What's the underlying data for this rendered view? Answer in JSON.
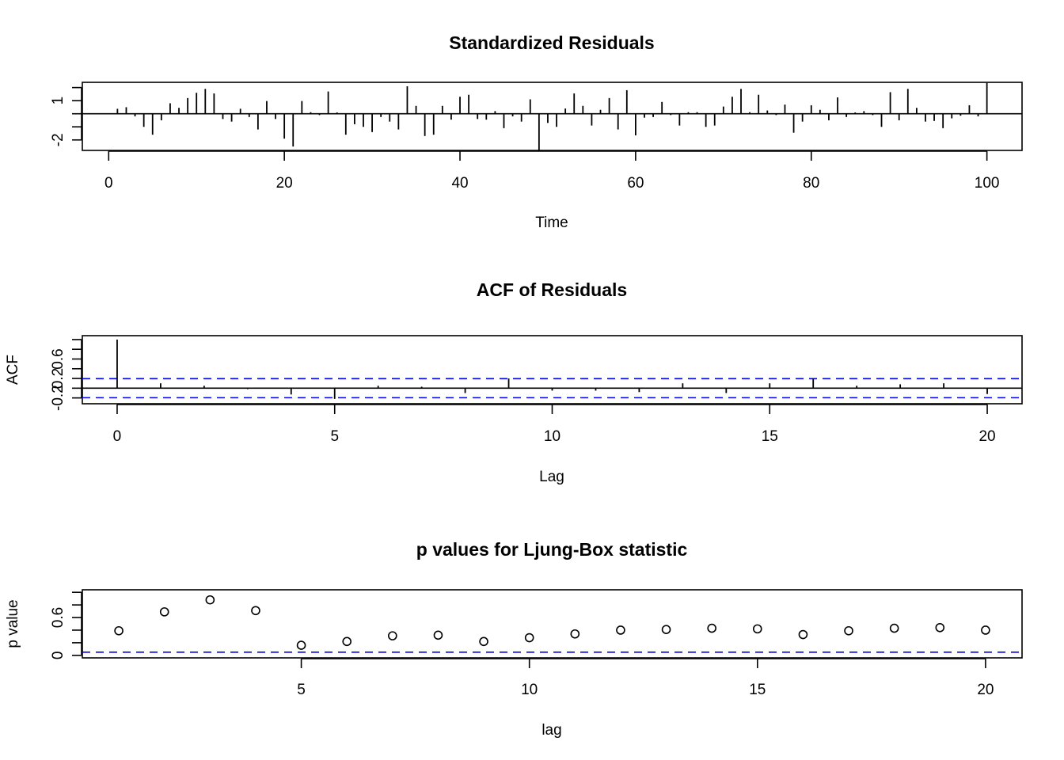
{
  "chart_data": [
    {
      "type": "line",
      "style": "histogram-spikes",
      "title": "Standardized Residuals",
      "xlabel": "Time",
      "ylabel": "",
      "xlim": [
        -3,
        104
      ],
      "ylim": [
        -2.8,
        2.4
      ],
      "x_ticks": [
        0,
        20,
        40,
        60,
        80,
        100
      ],
      "y_ticks": [
        1,
        -2
      ],
      "y_tick_marks": [
        2,
        1,
        0,
        -1,
        -2
      ],
      "x": [
        1,
        2,
        3,
        4,
        5,
        6,
        7,
        8,
        9,
        10,
        11,
        12,
        13,
        14,
        15,
        16,
        17,
        18,
        19,
        20,
        21,
        22,
        23,
        24,
        25,
        26,
        27,
        28,
        29,
        30,
        31,
        32,
        33,
        34,
        35,
        36,
        37,
        38,
        39,
        40,
        41,
        42,
        43,
        44,
        45,
        46,
        47,
        48,
        49,
        50,
        51,
        52,
        53,
        54,
        55,
        56,
        57,
        58,
        59,
        60,
        61,
        62,
        63,
        64,
        65,
        66,
        67,
        68,
        69,
        70,
        71,
        72,
        73,
        74,
        75,
        76,
        77,
        78,
        79,
        80,
        81,
        82,
        83,
        84,
        85,
        86,
        87,
        88,
        89,
        90,
        91,
        92,
        93,
        94,
        95,
        96,
        97,
        98,
        99,
        100
      ],
      "values": [
        0.38,
        0.5,
        -0.2,
        -1.0,
        -1.6,
        -0.5,
        0.8,
        0.45,
        1.2,
        1.6,
        1.9,
        1.55,
        -0.4,
        -0.6,
        0.38,
        -0.25,
        -1.2,
        0.97,
        -0.4,
        -1.9,
        -2.5,
        0.97,
        0.12,
        -0.1,
        1.7,
        0.1,
        -1.6,
        -0.8,
        -1.0,
        -1.4,
        -0.25,
        -0.6,
        -1.2,
        2.1,
        0.6,
        -1.7,
        -1.6,
        0.6,
        -0.45,
        1.3,
        1.45,
        -0.4,
        -0.45,
        0.2,
        -1.1,
        -0.2,
        -0.6,
        1.1,
        -2.8,
        -0.7,
        -1.0,
        0.4,
        1.55,
        0.6,
        -0.9,
        0.3,
        1.2,
        -1.2,
        1.8,
        -1.65,
        -0.3,
        -0.25,
        0.9,
        -0.1,
        -0.9,
        0.12,
        0.12,
        -1.0,
        -0.9,
        0.55,
        1.3,
        1.9,
        0.12,
        1.45,
        0.25,
        -0.1,
        0.7,
        -1.45,
        -0.6,
        0.65,
        0.3,
        -0.5,
        1.25,
        -0.25,
        0.1,
        0.2,
        -0.1,
        -1.0,
        1.65,
        -0.5,
        1.9,
        0.45,
        -0.6,
        -0.55,
        -1.1,
        -0.35,
        -0.15,
        0.65,
        -0.2,
        2.35
      ]
    },
    {
      "type": "bar",
      "style": "histogram-spikes",
      "title": "ACF of Residuals",
      "xlabel": "Lag",
      "ylabel": "ACF",
      "xlim": [
        -0.8,
        20.8
      ],
      "ylim": [
        -0.32,
        1.08
      ],
      "x_ticks": [
        0,
        5,
        10,
        15,
        20
      ],
      "y_ticks": [
        -0.2,
        0.2,
        0.6
      ],
      "y_tick_marks": [
        -0.2,
        0.0,
        0.2,
        0.4,
        0.6,
        0.8,
        1.0
      ],
      "x": [
        0,
        1,
        2,
        3,
        4,
        5,
        6,
        7,
        8,
        9,
        10,
        11,
        12,
        13,
        14,
        15,
        16,
        17,
        18,
        19,
        20
      ],
      "values": [
        1.0,
        0.1,
        0.05,
        -0.02,
        -0.13,
        -0.22,
        0.05,
        0.03,
        -0.1,
        0.2,
        -0.05,
        -0.05,
        -0.08,
        0.1,
        -0.1,
        0.1,
        0.2,
        0.05,
        0.08,
        0.1,
        -0.12
      ],
      "confidence_band": 0.196,
      "confidence_band_color": "#0000ff"
    },
    {
      "type": "scatter",
      "title": "p values for Ljung-Box statistic",
      "xlabel": "lag",
      "ylabel": "p value",
      "xlim": [
        0.2,
        20.8
      ],
      "ylim": [
        -0.04,
        1.04
      ],
      "x_ticks": [
        5,
        10,
        15,
        20
      ],
      "y_ticks": [
        0.0,
        0.6
      ],
      "y_tick_marks": [
        0.0,
        0.2,
        0.4,
        0.6,
        0.8,
        1.0
      ],
      "x": [
        1,
        2,
        3,
        4,
        5,
        6,
        7,
        8,
        9,
        10,
        11,
        12,
        13,
        14,
        15,
        16,
        17,
        18,
        19,
        20
      ],
      "values": [
        0.39,
        0.69,
        0.88,
        0.71,
        0.16,
        0.22,
        0.31,
        0.32,
        0.22,
        0.28,
        0.34,
        0.4,
        0.41,
        0.43,
        0.42,
        0.33,
        0.39,
        0.43,
        0.44,
        0.4
      ],
      "threshold": 0.05,
      "threshold_color": "#0000ff"
    }
  ]
}
